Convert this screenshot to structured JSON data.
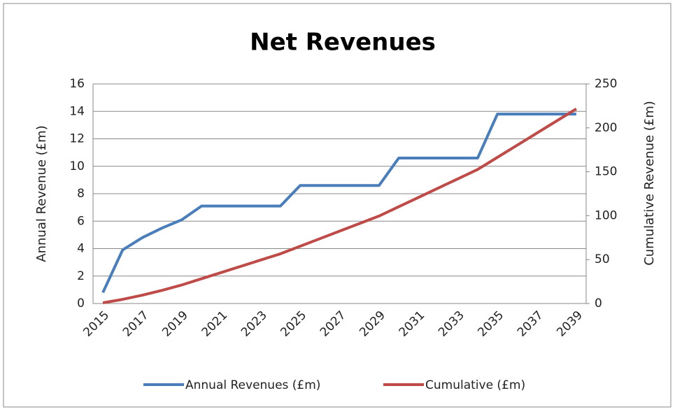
{
  "chart_data": {
    "type": "line",
    "title": "Net Revenues",
    "y_label": "Annual Revenue (£m)",
    "y2_label": "Cumulative Revenue (£m)",
    "categories": [
      "2015",
      null,
      "2017",
      null,
      "2019",
      null,
      "2021",
      null,
      "2023",
      null,
      "2025",
      null,
      "2027",
      null,
      "2029",
      null,
      "2031",
      null,
      "2033",
      null,
      "2035",
      null,
      "2037",
      null,
      "2039"
    ],
    "series": [
      {
        "name": "Annual Revenues (£m)",
        "color": "#4a7ebb",
        "values": [
          0.8,
          3.9,
          4.8,
          5.5,
          6.1,
          7.1,
          7.1,
          7.1,
          7.1,
          7.1,
          8.6,
          8.6,
          8.6,
          8.6,
          8.6,
          10.6,
          10.6,
          10.6,
          10.6,
          10.6,
          13.8,
          13.8,
          13.8,
          13.8,
          13.8
        ]
      },
      {
        "name": "Cumulative (£m)",
        "color": "#be4b48",
        "axis": "y2",
        "values": [
          0.8,
          4.7,
          9.5,
          15,
          21.1,
          28.2,
          35.3,
          42.4,
          49.5,
          56.6,
          65.2,
          73.8,
          82.4,
          91,
          99.6,
          110.2,
          120.8,
          131.4,
          142,
          152.6,
          166.4,
          180.2,
          194,
          207.8,
          221.6
        ]
      }
    ],
    "ylim": [
      0,
      16
    ],
    "yticks": [
      0,
      2,
      4,
      6,
      8,
      10,
      12,
      14,
      16
    ],
    "y2lim": [
      0,
      250
    ],
    "y2ticks": [
      0,
      50,
      100,
      150,
      200,
      250
    ],
    "grid": true,
    "legend": "bottom"
  }
}
